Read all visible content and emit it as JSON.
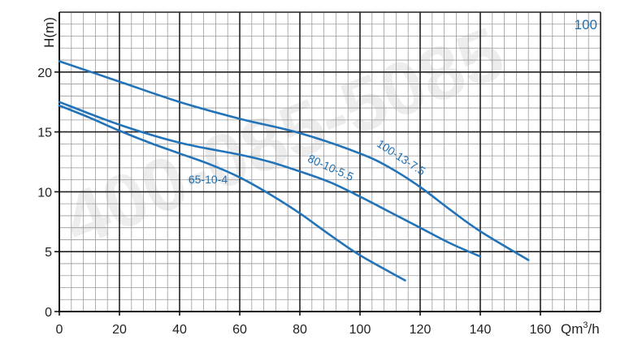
{
  "chart_data": {
    "type": "line",
    "badge": "100",
    "xlabel_main": "Qm",
    "xlabel_sup": "3",
    "xlabel_tail": "/h",
    "ylabel": "H(m)",
    "xlim": [
      0,
      180
    ],
    "ylim": [
      0,
      25
    ],
    "x_ticks": [
      0,
      20,
      40,
      60,
      80,
      100,
      120,
      140,
      160
    ],
    "x_tick_labels": [
      "0",
      "20",
      "40",
      "60",
      "80",
      "100",
      "120",
      "140",
      "160"
    ],
    "y_ticks": [
      0,
      5,
      10,
      15,
      20
    ],
    "y_tick_labels": [
      "0",
      "5",
      "10",
      "15",
      "20"
    ],
    "major_grid": {
      "x_step": 20,
      "y_step": 5
    },
    "minor_grid": {
      "x_step": 4,
      "y_step": 1
    },
    "watermark": "400-085-5085",
    "colors": {
      "series": "#2373b9",
      "label": "#1f6fb4",
      "major_grid": "#222222",
      "minor_grid": "#9a9a9a"
    },
    "series": [
      {
        "name": "65-10-4",
        "x": [
          0,
          10,
          20,
          30,
          40,
          50,
          60,
          70,
          80,
          90,
          100,
          115
        ],
        "y": [
          17.2,
          16.2,
          15.1,
          14.1,
          13.2,
          12.3,
          11.2,
          9.8,
          8.2,
          6.4,
          4.7,
          2.6
        ]
      },
      {
        "name": "80-10-5.5",
        "x": [
          0,
          20,
          40,
          60,
          70,
          80,
          90,
          100,
          110,
          120,
          130,
          140
        ],
        "y": [
          17.5,
          15.6,
          14.1,
          13.1,
          12.5,
          11.7,
          10.8,
          9.6,
          8.3,
          7.0,
          5.7,
          4.6
        ]
      },
      {
        "name": "100-13-7.5",
        "x": [
          0,
          20,
          40,
          60,
          80,
          100,
          110,
          120,
          130,
          140,
          156
        ],
        "y": [
          20.9,
          19.2,
          17.5,
          16.1,
          14.9,
          13.2,
          12.0,
          10.4,
          8.5,
          6.7,
          4.3
        ]
      }
    ]
  }
}
